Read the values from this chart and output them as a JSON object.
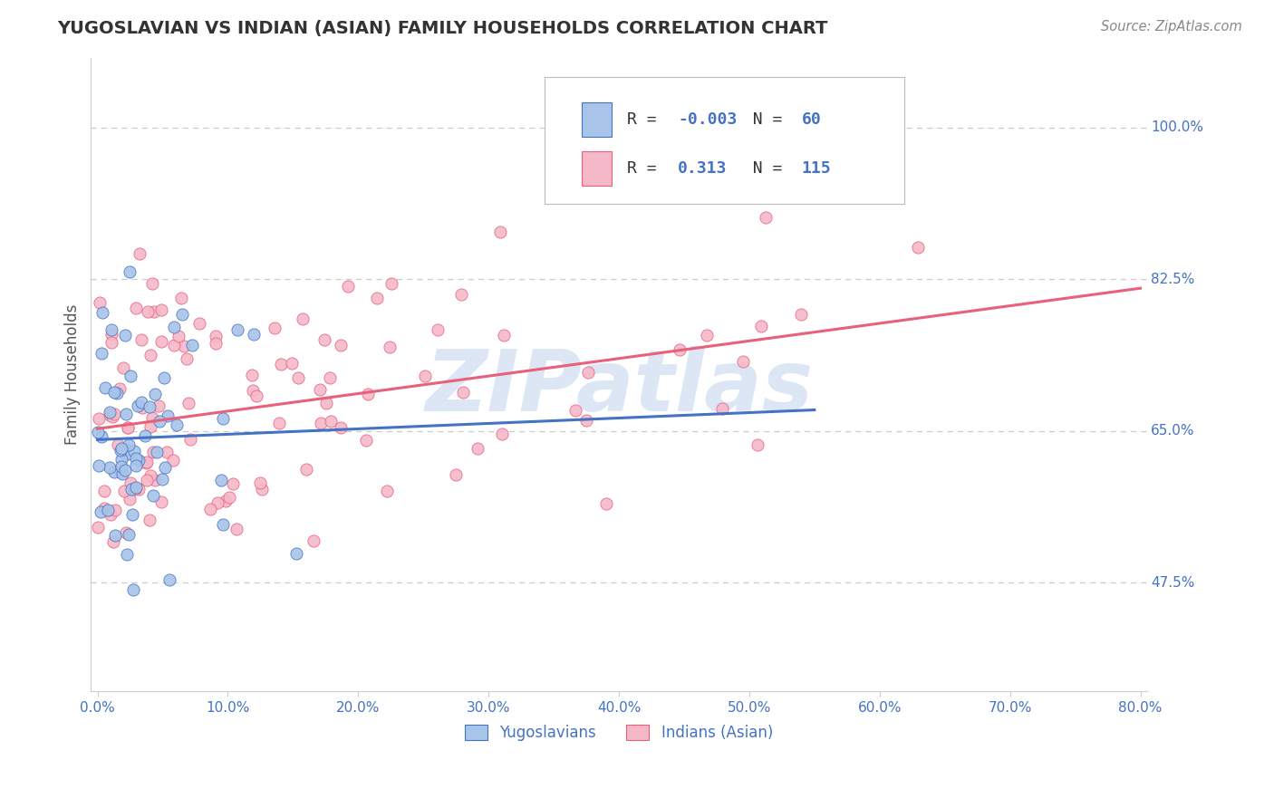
{
  "title": "YUGOSLAVIAN VS INDIAN (ASIAN) FAMILY HOUSEHOLDS CORRELATION CHART",
  "source": "Source: ZipAtlas.com",
  "ylabel": "Family Households",
  "legend_labels": [
    "Yugoslavians",
    "Indians (Asian)"
  ],
  "legend_R": [
    -0.003,
    0.313
  ],
  "legend_N": [
    60,
    115
  ],
  "blue_color": "#a8c4e8",
  "pink_color": "#f5b8c8",
  "blue_line_color": "#4472c4",
  "pink_line_color": "#e8607a",
  "axis_label_color": "#4472c4",
  "title_color": "#333333",
  "watermark_text": "ZIPatlas",
  "watermark_color": "#dce6f5",
  "background_color": "#ffffff",
  "xmin": 0.0,
  "xmax": 0.8,
  "ymin": 0.35,
  "ymax": 1.08,
  "yticks": [
    0.475,
    0.65,
    0.825,
    1.0
  ],
  "ytick_labels": [
    "47.5%",
    "65.0%",
    "82.5%",
    "100.0%"
  ],
  "xticks": [
    0.0,
    0.1,
    0.2,
    0.3,
    0.4,
    0.5,
    0.6,
    0.7,
    0.8
  ],
  "xtick_labels": [
    "0.0%",
    "10.0%",
    "20.0%",
    "30.0%",
    "40.0%",
    "50.0%",
    "60.0%",
    "70.0%",
    "80.0%"
  ],
  "grid_color": "#cccccc",
  "n_blue": 60,
  "n_pink": 115
}
